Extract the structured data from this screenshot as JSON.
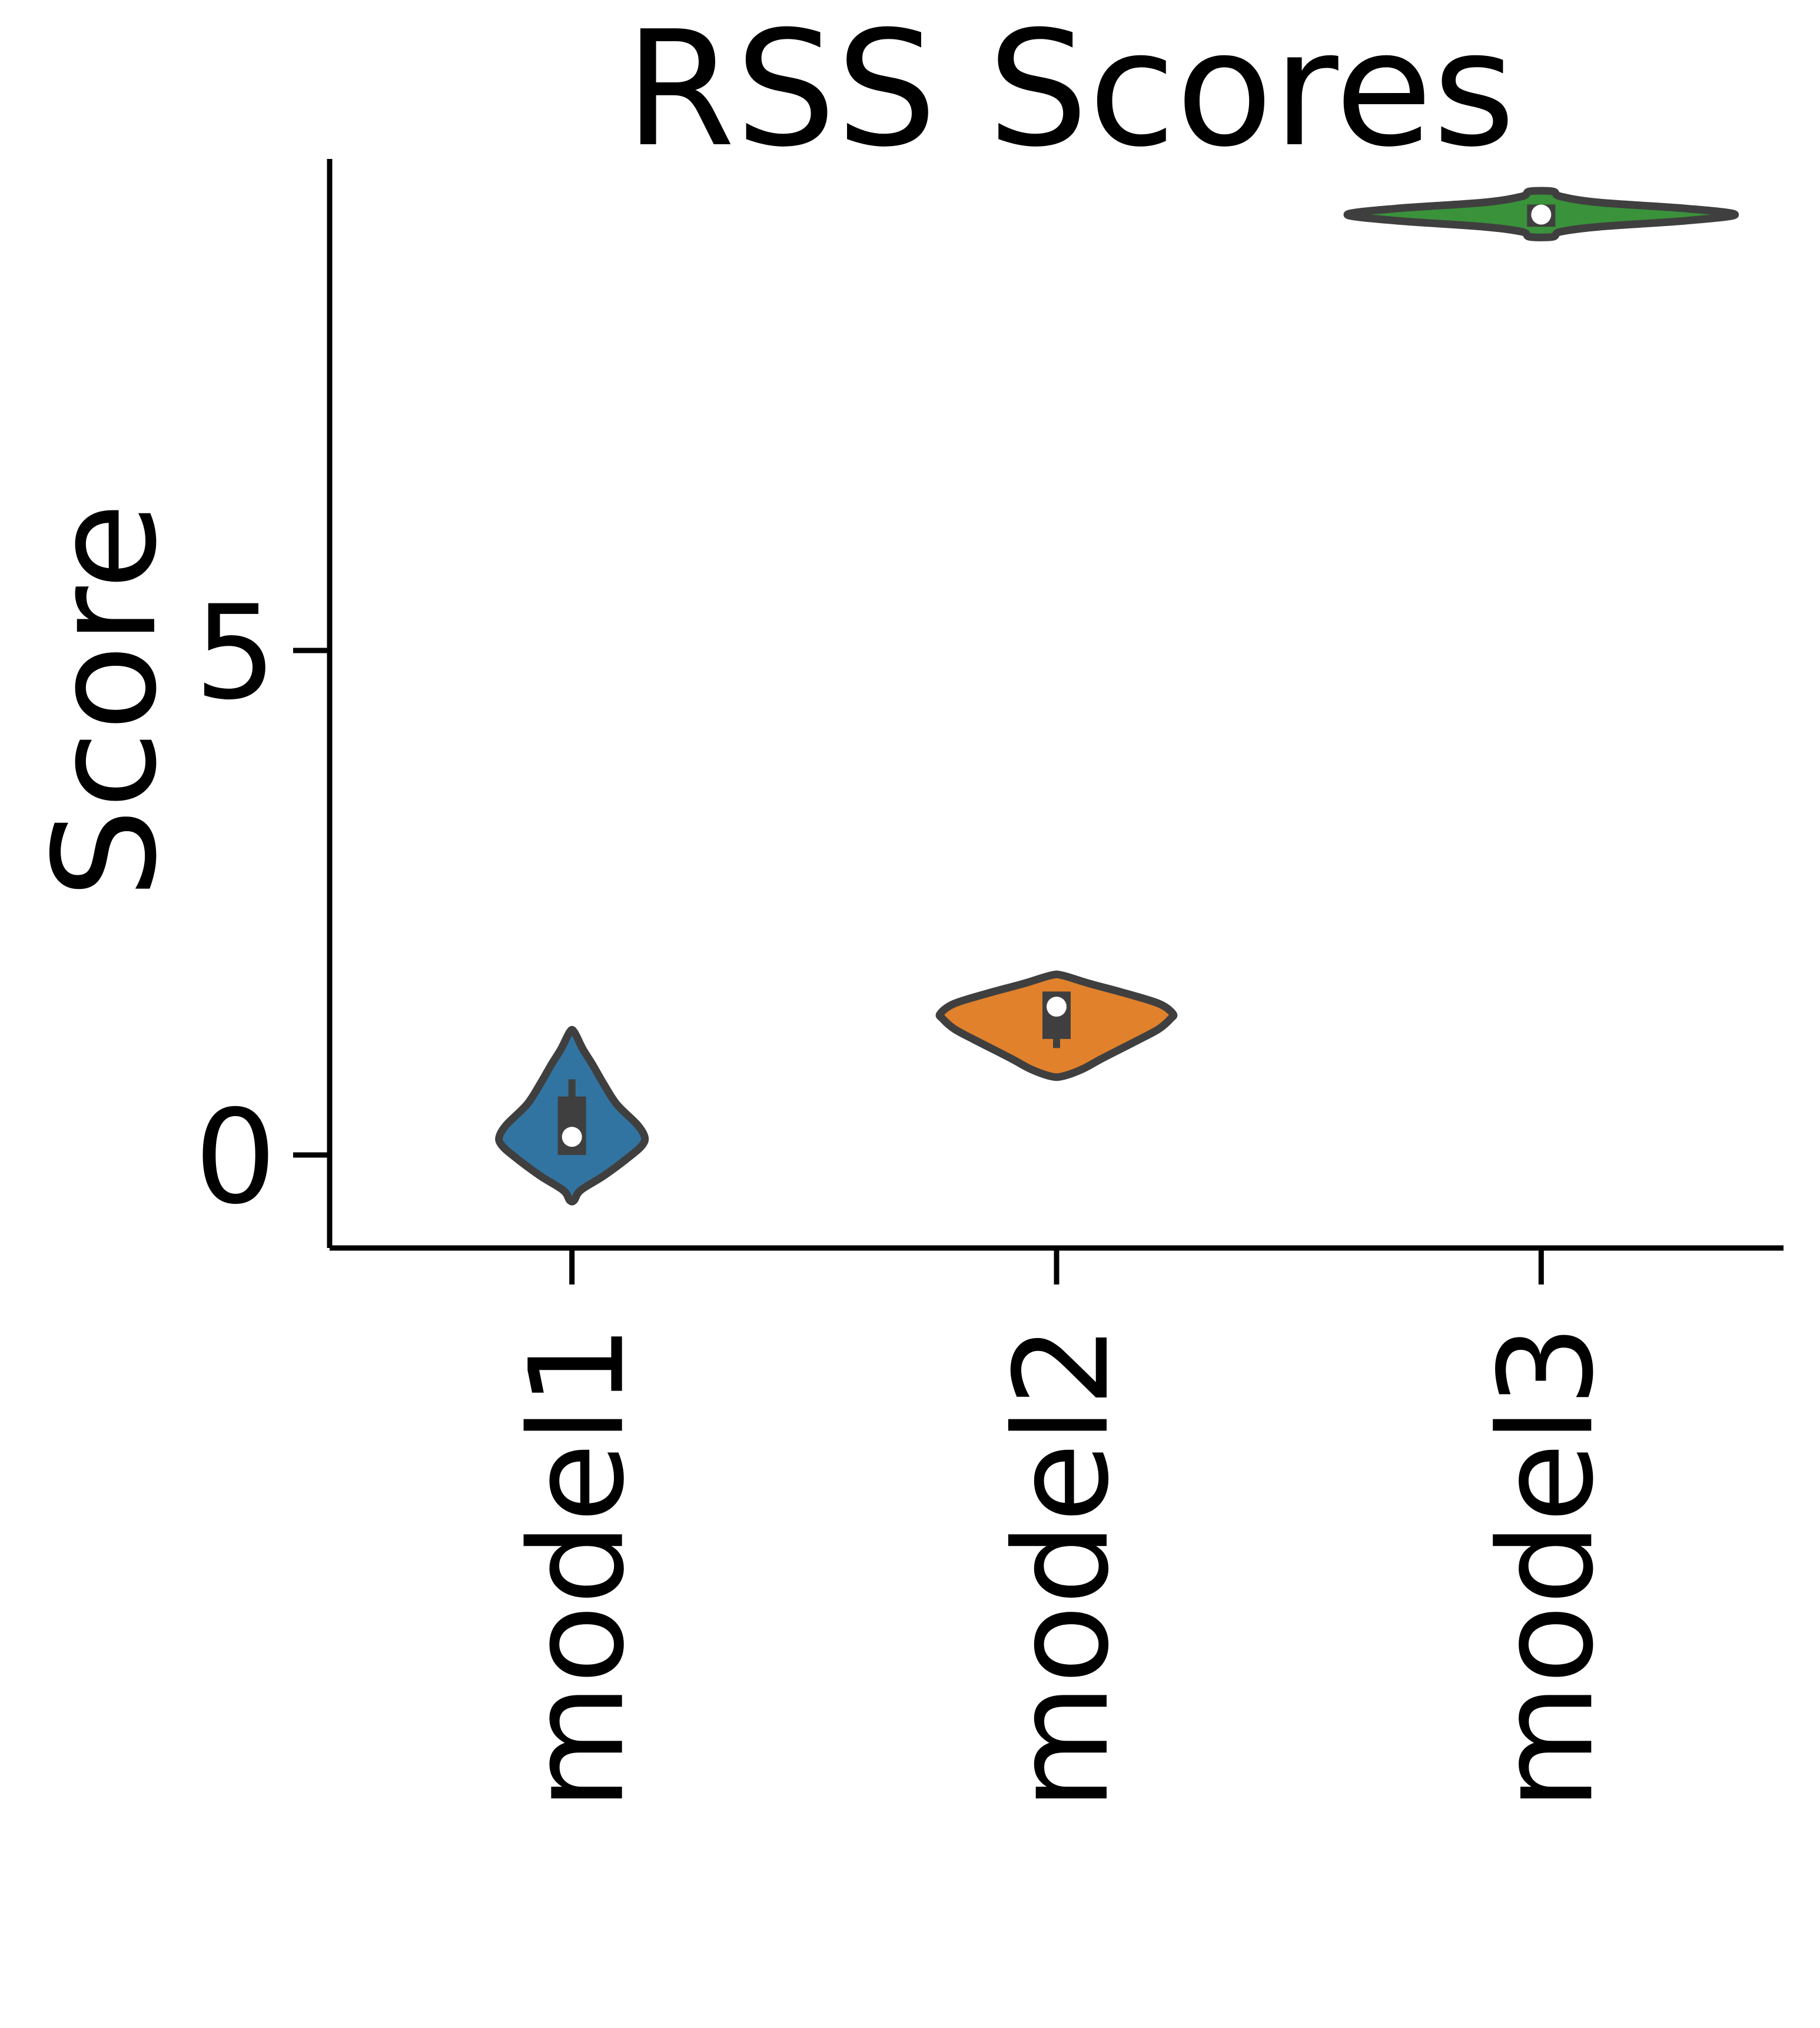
{
  "chart_data": {
    "type": "violin",
    "title": "RSS Scores",
    "xlabel": "",
    "ylabel": "Score",
    "categories": [
      "model1",
      "model2",
      "model3"
    ],
    "ylim": [
      -0.9,
      10.0
    ],
    "yticks": [
      0,
      5
    ],
    "ytick_labels": [
      "0",
      "5"
    ],
    "grid": false,
    "legend": "none",
    "colors": [
      "#3274a1",
      "#e1812c",
      "#3a923a"
    ],
    "outline_color": "#3f3f3f",
    "series": [
      {
        "category": "model1",
        "min": -0.45,
        "q1": 0.0,
        "median": 0.18,
        "q3": 0.58,
        "max": 1.22,
        "whisker_low": 0.0,
        "whisker_high": 0.75,
        "max_half_width_fraction": 0.15,
        "density": [
          [
            -0.45,
            0.03
          ],
          [
            -0.35,
            0.12
          ],
          [
            -0.2,
            0.45
          ],
          [
            0.0,
            0.82
          ],
          [
            0.1,
            0.97
          ],
          [
            0.18,
            1.0
          ],
          [
            0.3,
            0.9
          ],
          [
            0.5,
            0.62
          ],
          [
            0.7,
            0.44
          ],
          [
            0.9,
            0.28
          ],
          [
            1.05,
            0.15
          ],
          [
            1.22,
            0.03
          ]
        ]
      },
      {
        "category": "model2",
        "min": 0.78,
        "q1": 1.15,
        "median": 1.47,
        "q3": 1.62,
        "max": 1.78,
        "whisker_low": 1.06,
        "whisker_high": 1.62,
        "max_half_width_fraction": 0.24,
        "density": [
          [
            0.78,
            0.05
          ],
          [
            0.85,
            0.22
          ],
          [
            0.95,
            0.38
          ],
          [
            1.05,
            0.55
          ],
          [
            1.15,
            0.72
          ],
          [
            1.25,
            0.88
          ],
          [
            1.35,
            0.98
          ],
          [
            1.4,
            1.0
          ],
          [
            1.5,
            0.88
          ],
          [
            1.6,
            0.6
          ],
          [
            1.7,
            0.28
          ],
          [
            1.78,
            0.05
          ]
        ]
      },
      {
        "category": "model3",
        "min": 9.1,
        "q1": 9.2,
        "median": 9.32,
        "q3": 9.42,
        "max": 9.55,
        "whisker_low": 9.2,
        "whisker_high": 9.42,
        "max_half_width_fraction": 0.4,
        "density": [
          [
            9.1,
            0.06
          ],
          [
            9.15,
            0.1
          ],
          [
            9.2,
            0.3
          ],
          [
            9.26,
            0.75
          ],
          [
            9.32,
            1.0
          ],
          [
            9.38,
            0.75
          ],
          [
            9.44,
            0.3
          ],
          [
            9.5,
            0.1
          ],
          [
            9.55,
            0.06
          ]
        ]
      }
    ]
  }
}
